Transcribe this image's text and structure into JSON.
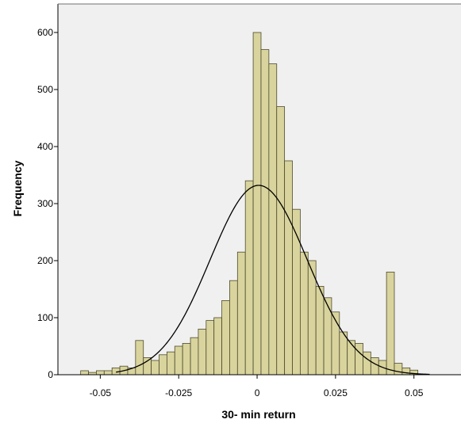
{
  "chart_data": {
    "type": "bar",
    "title": "",
    "xlabel": "30- min return",
    "ylabel": "Frequency",
    "xlim": [
      -0.0635,
      0.065
    ],
    "ylim": [
      0,
      650
    ],
    "x_ticks": [
      -0.05,
      -0.025,
      0,
      0.025,
      0.05
    ],
    "x_tick_labels": [
      "-0.05",
      "-0.025",
      "0",
      "0.025",
      "0.05"
    ],
    "y_ticks": [
      0,
      100,
      200,
      300,
      400,
      500,
      600
    ],
    "y_tick_labels": [
      "0",
      "100",
      "200",
      "300",
      "400",
      "500",
      "600"
    ],
    "grid": false,
    "bar_width": 0.0025,
    "bins": [
      {
        "x": -0.055,
        "value": 7
      },
      {
        "x": -0.0525,
        "value": 4
      },
      {
        "x": -0.05,
        "value": 7
      },
      {
        "x": -0.0475,
        "value": 7
      },
      {
        "x": -0.045,
        "value": 12
      },
      {
        "x": -0.0425,
        "value": 15
      },
      {
        "x": -0.04,
        "value": 12
      },
      {
        "x": -0.0375,
        "value": 60
      },
      {
        "x": -0.035,
        "value": 30
      },
      {
        "x": -0.0325,
        "value": 25
      },
      {
        "x": -0.03,
        "value": 35
      },
      {
        "x": -0.0275,
        "value": 40
      },
      {
        "x": -0.025,
        "value": 50
      },
      {
        "x": -0.0225,
        "value": 55
      },
      {
        "x": -0.02,
        "value": 65
      },
      {
        "x": -0.0175,
        "value": 80
      },
      {
        "x": -0.015,
        "value": 95
      },
      {
        "x": -0.0125,
        "value": 100
      },
      {
        "x": -0.01,
        "value": 130
      },
      {
        "x": -0.0075,
        "value": 165
      },
      {
        "x": -0.005,
        "value": 215
      },
      {
        "x": -0.0025,
        "value": 340
      },
      {
        "x": 0.0,
        "value": 600
      },
      {
        "x": 0.0025,
        "value": 570
      },
      {
        "x": 0.005,
        "value": 545
      },
      {
        "x": 0.0075,
        "value": 470
      },
      {
        "x": 0.01,
        "value": 375
      },
      {
        "x": 0.0125,
        "value": 290
      },
      {
        "x": 0.015,
        "value": 215
      },
      {
        "x": 0.0175,
        "value": 200
      },
      {
        "x": 0.02,
        "value": 155
      },
      {
        "x": 0.0225,
        "value": 135
      },
      {
        "x": 0.025,
        "value": 110
      },
      {
        "x": 0.0275,
        "value": 75
      },
      {
        "x": 0.03,
        "value": 60
      },
      {
        "x": 0.0325,
        "value": 55
      },
      {
        "x": 0.035,
        "value": 40
      },
      {
        "x": 0.0375,
        "value": 30
      },
      {
        "x": 0.04,
        "value": 25
      },
      {
        "x": 0.0425,
        "value": 180
      },
      {
        "x": 0.045,
        "value": 20
      },
      {
        "x": 0.0475,
        "value": 12
      },
      {
        "x": 0.05,
        "value": 8
      }
    ],
    "normal_curve": {
      "mean": 0.0005,
      "std_dev": 0.0155,
      "peak": 332
    },
    "colors": {
      "bar_fill": "#d9d49d",
      "bar_stroke": "#4d4a2e",
      "plot_background": "#f0f0f0",
      "curve": "#000000",
      "frame": "#000000"
    }
  }
}
